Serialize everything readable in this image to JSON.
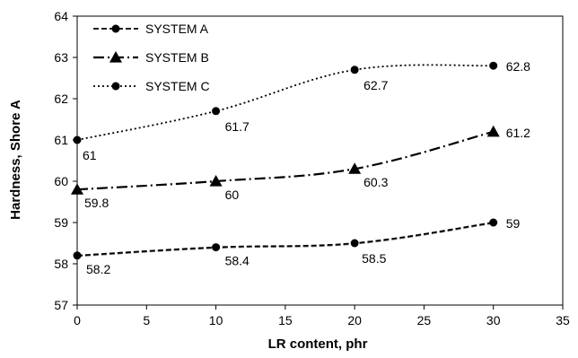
{
  "chart_data": {
    "type": "line",
    "xlabel": "LR content, phr",
    "ylabel": "Hardness, Shore A",
    "xlim": [
      0,
      35
    ],
    "ylim": [
      57,
      64
    ],
    "xticks": [
      0,
      5,
      10,
      15,
      20,
      25,
      30,
      35
    ],
    "yticks": [
      57,
      58,
      59,
      60,
      61,
      62,
      63,
      64
    ],
    "grid": false,
    "legend_position": "top-left",
    "series": [
      {
        "name": "SYSTEM A",
        "marker": "circle",
        "dash": "dashed",
        "color": "#000000",
        "x": [
          0,
          10,
          20,
          30
        ],
        "y": [
          58.2,
          58.4,
          58.5,
          59
        ],
        "labels": [
          "58.2",
          "58.4",
          "58.5",
          "59"
        ]
      },
      {
        "name": "SYSTEM B",
        "marker": "triangle",
        "dash": "dash-dot",
        "color": "#000000",
        "x": [
          0,
          10,
          20,
          30
        ],
        "y": [
          59.8,
          60,
          60.3,
          61.2
        ],
        "labels": [
          "59.8",
          "60",
          "60.3",
          "61.2"
        ]
      },
      {
        "name": "SYSTEM C",
        "marker": "circle",
        "dash": "dotted",
        "color": "#000000",
        "x": [
          0,
          10,
          20,
          30
        ],
        "y": [
          61,
          61.7,
          62.7,
          62.8
        ],
        "labels": [
          "61",
          "61.7",
          "62.7",
          "62.8"
        ]
      }
    ]
  }
}
